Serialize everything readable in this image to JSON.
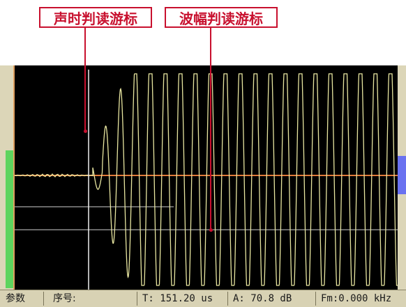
{
  "annotations": {
    "time_cursor_label": "声时判读游标",
    "amplitude_cursor_label": "波幅判读游标"
  },
  "colors": {
    "callout_border": "#c8102e",
    "waveform": "#e8e6a0",
    "baseline": "#e07a3a",
    "cursor_line": "#f0f0f0",
    "scope_bg": "#000000",
    "left_marker": "#5ed45e",
    "right_marker": "#6a72f0"
  },
  "status_bar": {
    "params_button": "参数",
    "sequence_label": "序号:",
    "sequence_value": "",
    "time": "T: 151.20 us",
    "amplitude": "A: 70.8  dB",
    "frequency": "Fm:0.000 kHz"
  }
}
